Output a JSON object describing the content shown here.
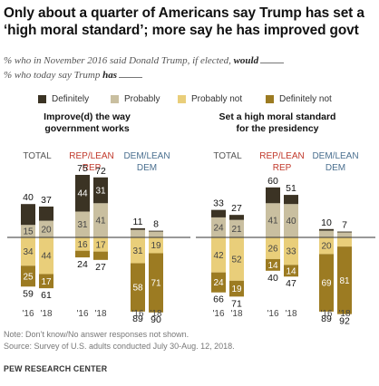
{
  "title": "Only about a quarter of Americans say Trump has set a ‘high moral standard’; more say he has improved govt",
  "subtitle_line1_pre": "% who in November 2016 said Donald Trump, if elected, ",
  "subtitle_line1_bold": "would",
  "subtitle_line2_pre": "% who today say Trump ",
  "subtitle_line2_bold": "has",
  "note": "Note: Don’t know/No answer responses not shown.",
  "source": "Source: Survey of U.S. adults conducted July 30-Aug. 12, 2018.",
  "brand": "PEW RESEARCH CENTER",
  "colors": {
    "definitely": "#3b3324",
    "probably": "#c9bfa0",
    "probably_not": "#e9ce7a",
    "definitely_not": "#9c7b22",
    "rep": "#c1392b",
    "dem": "#4a6f8f"
  },
  "legend": [
    "Definitely",
    "Probably",
    "Probably not",
    "Definitely not"
  ],
  "chart_data": [
    {
      "type": "bar",
      "title": "Improve(d) the way government works",
      "groups": [
        {
          "label": "TOTAL",
          "color": "default",
          "years": [
            "'16",
            "'18"
          ],
          "definitely": [
            25,
            17
          ],
          "probably": [
            15,
            20
          ],
          "probably_not": [
            34,
            44
          ],
          "definitely_not": [
            25,
            17
          ],
          "total_positive": [
            40,
            37
          ],
          "total_negative": [
            59,
            61
          ]
        },
        {
          "label": "REP/LEAN REP",
          "color": "rep",
          "years": [
            "'16",
            "'18"
          ],
          "definitely": [
            44,
            31
          ],
          "probably": [
            31,
            41
          ],
          "probably_not": [
            16,
            17
          ],
          "definitely_not": [
            8,
            10
          ],
          "total_positive": [
            75,
            72
          ],
          "total_negative": [
            24,
            27
          ]
        },
        {
          "label": "DEM/LEAN DEM",
          "color": "dem",
          "years": [
            "'16",
            "'18"
          ],
          "definitely": [
            2,
            1
          ],
          "probably": [
            9,
            7
          ],
          "probably_not": [
            31,
            19
          ],
          "definitely_not": [
            58,
            71
          ],
          "total_positive": [
            11,
            8
          ],
          "total_negative": [
            89,
            90
          ]
        }
      ]
    },
    {
      "type": "bar",
      "title": "Set a high moral standard for the presidency",
      "groups": [
        {
          "label": "TOTAL",
          "color": "default",
          "years": [
            "'16",
            "'18"
          ],
          "definitely": [
            9,
            6
          ],
          "probably": [
            24,
            21
          ],
          "probably_not": [
            42,
            52
          ],
          "definitely_not": [
            24,
            19
          ],
          "total_positive": [
            33,
            27
          ],
          "total_negative": [
            66,
            71
          ]
        },
        {
          "label": "REP/LEAN REP",
          "color": "rep",
          "years": [
            "'16",
            "'18"
          ],
          "definitely": [
            19,
            11
          ],
          "probably": [
            41,
            40
          ],
          "probably_not": [
            26,
            33
          ],
          "definitely_not": [
            14,
            14
          ],
          "total_positive": [
            60,
            51
          ],
          "total_negative": [
            40,
            47
          ]
        },
        {
          "label": "DEM/LEAN DEM",
          "color": "dem",
          "years": [
            "'16",
            "'18"
          ],
          "definitely": [
            2,
            1
          ],
          "probably": [
            8,
            6
          ],
          "probably_not": [
            20,
            11
          ],
          "definitely_not": [
            69,
            81
          ],
          "total_positive": [
            10,
            7
          ],
          "total_negative": [
            89,
            92
          ]
        }
      ]
    }
  ]
}
